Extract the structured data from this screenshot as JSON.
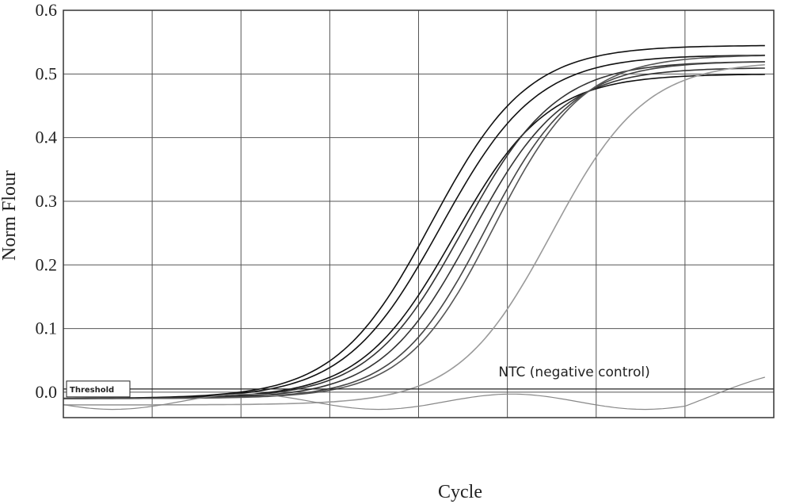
{
  "chart_data": {
    "type": "line",
    "title": "",
    "xlabel": "Cycle",
    "ylabel": "Norm Flour",
    "ylim": [
      -0.04,
      0.6
    ],
    "xlim": [
      0,
      8
    ],
    "yticks": [
      0.0,
      0.1,
      0.2,
      0.3,
      0.4,
      0.5,
      0.6
    ],
    "ytick_labels": [
      "0.0",
      "0.1",
      "0.2",
      "0.3",
      "0.4",
      "0.5",
      "0.6"
    ],
    "xticks_shown": false,
    "grid": true,
    "threshold": {
      "label": "Threshold",
      "value": 0.005
    },
    "annotation": {
      "text": "NTC (negative control)",
      "x": 4.9,
      "y": 0.025
    },
    "series": [
      {
        "plateau": 0.545,
        "midpoint": 4.15,
        "slope": 1.85,
        "color": "#111111",
        "values": [
          [
            0,
            -0.01
          ],
          [
            1,
            -0.009
          ],
          [
            2,
            -0.007
          ],
          [
            3,
            0.012
          ],
          [
            3.5,
            0.06
          ],
          [
            4,
            0.22
          ],
          [
            4.5,
            0.37
          ],
          [
            5,
            0.47
          ],
          [
            5.5,
            0.53
          ],
          [
            6,
            0.54
          ],
          [
            7,
            0.545
          ],
          [
            7.9,
            0.545
          ]
        ]
      },
      {
        "plateau": 0.53,
        "midpoint": 4.25,
        "slope": 1.85,
        "color": "#111111",
        "values": [
          [
            0,
            -0.01
          ],
          [
            1,
            -0.009
          ],
          [
            2,
            -0.007
          ],
          [
            3,
            0.01
          ],
          [
            3.5,
            0.05
          ],
          [
            4,
            0.19
          ],
          [
            4.5,
            0.34
          ],
          [
            5,
            0.46
          ],
          [
            5.5,
            0.51
          ],
          [
            6,
            0.525
          ],
          [
            7,
            0.53
          ],
          [
            7.9,
            0.53
          ]
        ]
      },
      {
        "plateau": 0.5,
        "midpoint": 4.4,
        "slope": 1.9,
        "color": "#111111",
        "values": [
          [
            0,
            -0.01
          ],
          [
            1,
            -0.009
          ],
          [
            2,
            -0.007
          ],
          [
            3,
            0.008
          ],
          [
            3.5,
            0.035
          ],
          [
            4,
            0.16
          ],
          [
            4.5,
            0.3
          ],
          [
            5,
            0.42
          ],
          [
            5.5,
            0.48
          ],
          [
            6,
            0.495
          ],
          [
            7,
            0.5
          ],
          [
            7.9,
            0.5
          ]
        ]
      },
      {
        "plateau": 0.52,
        "midpoint": 4.5,
        "slope": 1.9,
        "color": "#333333",
        "values": [
          [
            0,
            -0.01
          ],
          [
            1,
            -0.009
          ],
          [
            2,
            -0.007
          ],
          [
            3,
            0.006
          ],
          [
            3.5,
            0.03
          ],
          [
            4,
            0.13
          ],
          [
            4.5,
            0.27
          ],
          [
            5,
            0.41
          ],
          [
            5.5,
            0.48
          ],
          [
            6,
            0.51
          ],
          [
            7,
            0.52
          ],
          [
            7.9,
            0.52
          ]
        ]
      },
      {
        "plateau": 0.51,
        "midpoint": 4.6,
        "slope": 1.95,
        "color": "#333333",
        "values": [
          [
            0,
            -0.01
          ],
          [
            1,
            -0.009
          ],
          [
            2,
            -0.007
          ],
          [
            3,
            0.005
          ],
          [
            3.5,
            0.025
          ],
          [
            4,
            0.1
          ],
          [
            4.5,
            0.24
          ],
          [
            5,
            0.39
          ],
          [
            5.5,
            0.47
          ],
          [
            6,
            0.5
          ],
          [
            7,
            0.51
          ],
          [
            7.9,
            0.51
          ]
        ]
      },
      {
        "plateau": 0.52,
        "midpoint": 4.75,
        "slope": 2.0,
        "color": "#444444",
        "values": [
          [
            0,
            -0.01
          ],
          [
            1,
            -0.009
          ],
          [
            2,
            -0.007
          ],
          [
            3,
            0.004
          ],
          [
            3.5,
            0.02
          ],
          [
            4,
            0.08
          ],
          [
            4.5,
            0.2
          ],
          [
            5,
            0.35
          ],
          [
            5.5,
            0.46
          ],
          [
            6,
            0.505
          ],
          [
            7,
            0.52
          ],
          [
            7.9,
            0.52
          ]
        ]
      },
      {
        "plateau": 0.53,
        "midpoint": 4.85,
        "slope": 2.0,
        "color": "#555555",
        "values": [
          [
            0,
            -0.01
          ],
          [
            1,
            -0.009
          ],
          [
            2,
            -0.007
          ],
          [
            3,
            0.003
          ],
          [
            3.5,
            0.015
          ],
          [
            4,
            0.06
          ],
          [
            4.5,
            0.17
          ],
          [
            5,
            0.32
          ],
          [
            5.5,
            0.45
          ],
          [
            6,
            0.51
          ],
          [
            7,
            0.53
          ],
          [
            7.9,
            0.53
          ]
        ]
      },
      {
        "plateau": 0.52,
        "midpoint": 5.5,
        "slope": 1.9,
        "color": "#9a9a9a",
        "values": [
          [
            0,
            -0.02
          ],
          [
            1,
            -0.018
          ],
          [
            2,
            -0.016
          ],
          [
            3,
            -0.01
          ],
          [
            3.5,
            -0.005
          ],
          [
            4,
            0.01
          ],
          [
            4.5,
            0.05
          ],
          [
            5,
            0.15
          ],
          [
            5.5,
            0.28
          ],
          [
            6,
            0.4
          ],
          [
            6.5,
            0.48
          ],
          [
            7,
            0.51
          ],
          [
            7.9,
            0.52
          ]
        ]
      }
    ],
    "ntc_series": {
      "name": "NTC (negative control)",
      "color": "#888888"
    }
  }
}
